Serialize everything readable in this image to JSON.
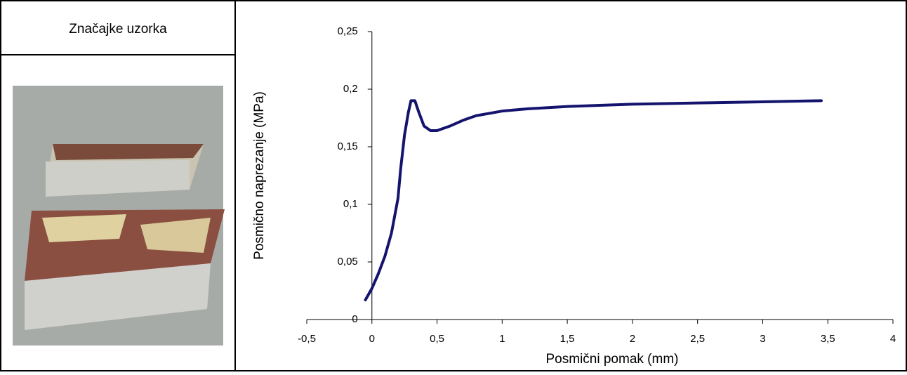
{
  "table": {
    "header": "Značajke uzorka"
  },
  "chart_data": {
    "type": "line",
    "x_label": "Posmični pomak (mm)",
    "y_label": "Posmično naprezanje (MPa)",
    "x": [
      -0.05,
      0,
      0.05,
      0.1,
      0.15,
      0.2,
      0.22,
      0.25,
      0.28,
      0.3,
      0.33,
      0.36,
      0.4,
      0.45,
      0.5,
      0.6,
      0.7,
      0.8,
      1,
      1.2,
      1.5,
      2,
      2.5,
      3,
      3.45
    ],
    "series": [
      {
        "color": "#14146e",
        "values": [
          0.017,
          0.027,
          0.04,
          0.055,
          0.075,
          0.105,
          0.13,
          0.16,
          0.18,
          0.19,
          0.19,
          0.18,
          0.168,
          0.164,
          0.164,
          0.168,
          0.173,
          0.177,
          0.181,
          0.183,
          0.185,
          0.187,
          0.188,
          0.189,
          0.19
        ]
      }
    ],
    "xlim": [
      -0.5,
      4
    ],
    "ylim": [
      0,
      0.25
    ],
    "xticks": [
      {
        "value": -0.5,
        "label": "-0,5"
      },
      0,
      {
        "value": 0.5,
        "label": "0,5"
      },
      1,
      {
        "value": 1.5,
        "label": "1,5"
      },
      2,
      {
        "value": 2.5,
        "label": "2,5"
      },
      3,
      {
        "value": 3.5,
        "label": "3,5"
      },
      4
    ],
    "yticks": [
      0,
      {
        "value": 0.05,
        "label": "0,05"
      },
      {
        "value": 0.1,
        "label": "0,1"
      },
      {
        "value": 0.15,
        "label": "0,15"
      },
      {
        "value": 0.2,
        "label": "0,2"
      },
      {
        "value": 0.25,
        "label": "0,25"
      }
    ]
  }
}
